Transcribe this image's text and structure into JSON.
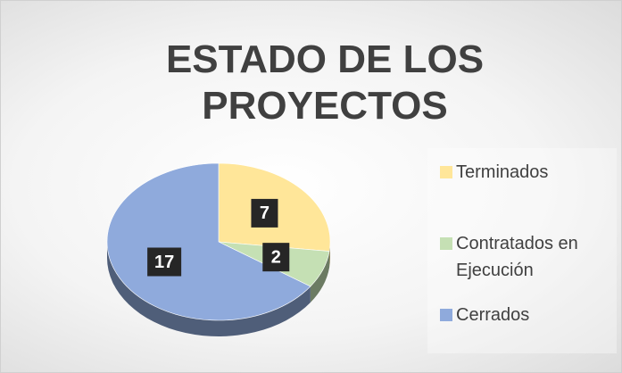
{
  "chart_data": {
    "type": "pie",
    "title": "ESTADO DE LOS PROYECTOS",
    "categories": [
      "Terminados",
      "Contratados en Ejecución",
      "Cerrados"
    ],
    "values": [
      7,
      2,
      17
    ],
    "colors": [
      "#ffe699",
      "#c5e0b4",
      "#8faadc"
    ],
    "legend": "right"
  }
}
